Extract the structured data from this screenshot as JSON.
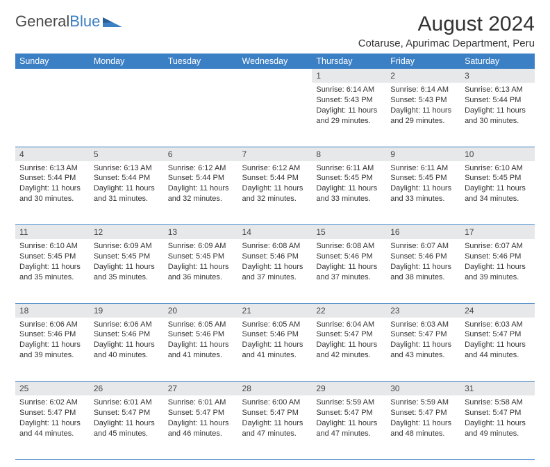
{
  "brand": {
    "text1": "General",
    "text2": "Blue"
  },
  "title": "August 2024",
  "location": "Cotaruse, Apurimac Department, Peru",
  "colors": {
    "header_bg": "#3b7fc4",
    "header_fg": "#ffffff",
    "daynum_bg": "#e7e8ea",
    "row_divider": "#3b7fc4",
    "text": "#333333",
    "page_bg": "#ffffff"
  },
  "typography": {
    "title_fontsize": 30,
    "location_fontsize": 15,
    "th_fontsize": 12.5,
    "daynum_fontsize": 12,
    "cell_fontsize": 11
  },
  "weekdays": [
    "Sunday",
    "Monday",
    "Tuesday",
    "Wednesday",
    "Thursday",
    "Friday",
    "Saturday"
  ],
  "weeks": [
    [
      null,
      null,
      null,
      null,
      {
        "d": "1",
        "sr": "6:14 AM",
        "ss": "5:43 PM",
        "dl": "11 hours and 29 minutes."
      },
      {
        "d": "2",
        "sr": "6:14 AM",
        "ss": "5:43 PM",
        "dl": "11 hours and 29 minutes."
      },
      {
        "d": "3",
        "sr": "6:13 AM",
        "ss": "5:44 PM",
        "dl": "11 hours and 30 minutes."
      }
    ],
    [
      {
        "d": "4",
        "sr": "6:13 AM",
        "ss": "5:44 PM",
        "dl": "11 hours and 30 minutes."
      },
      {
        "d": "5",
        "sr": "6:13 AM",
        "ss": "5:44 PM",
        "dl": "11 hours and 31 minutes."
      },
      {
        "d": "6",
        "sr": "6:12 AM",
        "ss": "5:44 PM",
        "dl": "11 hours and 32 minutes."
      },
      {
        "d": "7",
        "sr": "6:12 AM",
        "ss": "5:44 PM",
        "dl": "11 hours and 32 minutes."
      },
      {
        "d": "8",
        "sr": "6:11 AM",
        "ss": "5:45 PM",
        "dl": "11 hours and 33 minutes."
      },
      {
        "d": "9",
        "sr": "6:11 AM",
        "ss": "5:45 PM",
        "dl": "11 hours and 33 minutes."
      },
      {
        "d": "10",
        "sr": "6:10 AM",
        "ss": "5:45 PM",
        "dl": "11 hours and 34 minutes."
      }
    ],
    [
      {
        "d": "11",
        "sr": "6:10 AM",
        "ss": "5:45 PM",
        "dl": "11 hours and 35 minutes."
      },
      {
        "d": "12",
        "sr": "6:09 AM",
        "ss": "5:45 PM",
        "dl": "11 hours and 35 minutes."
      },
      {
        "d": "13",
        "sr": "6:09 AM",
        "ss": "5:45 PM",
        "dl": "11 hours and 36 minutes."
      },
      {
        "d": "14",
        "sr": "6:08 AM",
        "ss": "5:46 PM",
        "dl": "11 hours and 37 minutes."
      },
      {
        "d": "15",
        "sr": "6:08 AM",
        "ss": "5:46 PM",
        "dl": "11 hours and 37 minutes."
      },
      {
        "d": "16",
        "sr": "6:07 AM",
        "ss": "5:46 PM",
        "dl": "11 hours and 38 minutes."
      },
      {
        "d": "17",
        "sr": "6:07 AM",
        "ss": "5:46 PM",
        "dl": "11 hours and 39 minutes."
      }
    ],
    [
      {
        "d": "18",
        "sr": "6:06 AM",
        "ss": "5:46 PM",
        "dl": "11 hours and 39 minutes."
      },
      {
        "d": "19",
        "sr": "6:06 AM",
        "ss": "5:46 PM",
        "dl": "11 hours and 40 minutes."
      },
      {
        "d": "20",
        "sr": "6:05 AM",
        "ss": "5:46 PM",
        "dl": "11 hours and 41 minutes."
      },
      {
        "d": "21",
        "sr": "6:05 AM",
        "ss": "5:46 PM",
        "dl": "11 hours and 41 minutes."
      },
      {
        "d": "22",
        "sr": "6:04 AM",
        "ss": "5:47 PM",
        "dl": "11 hours and 42 minutes."
      },
      {
        "d": "23",
        "sr": "6:03 AM",
        "ss": "5:47 PM",
        "dl": "11 hours and 43 minutes."
      },
      {
        "d": "24",
        "sr": "6:03 AM",
        "ss": "5:47 PM",
        "dl": "11 hours and 44 minutes."
      }
    ],
    [
      {
        "d": "25",
        "sr": "6:02 AM",
        "ss": "5:47 PM",
        "dl": "11 hours and 44 minutes."
      },
      {
        "d": "26",
        "sr": "6:01 AM",
        "ss": "5:47 PM",
        "dl": "11 hours and 45 minutes."
      },
      {
        "d": "27",
        "sr": "6:01 AM",
        "ss": "5:47 PM",
        "dl": "11 hours and 46 minutes."
      },
      {
        "d": "28",
        "sr": "6:00 AM",
        "ss": "5:47 PM",
        "dl": "11 hours and 47 minutes."
      },
      {
        "d": "29",
        "sr": "5:59 AM",
        "ss": "5:47 PM",
        "dl": "11 hours and 47 minutes."
      },
      {
        "d": "30",
        "sr": "5:59 AM",
        "ss": "5:47 PM",
        "dl": "11 hours and 48 minutes."
      },
      {
        "d": "31",
        "sr": "5:58 AM",
        "ss": "5:47 PM",
        "dl": "11 hours and 49 minutes."
      }
    ]
  ],
  "labels": {
    "sunrise": "Sunrise:",
    "sunset": "Sunset:",
    "daylight": "Daylight:"
  }
}
